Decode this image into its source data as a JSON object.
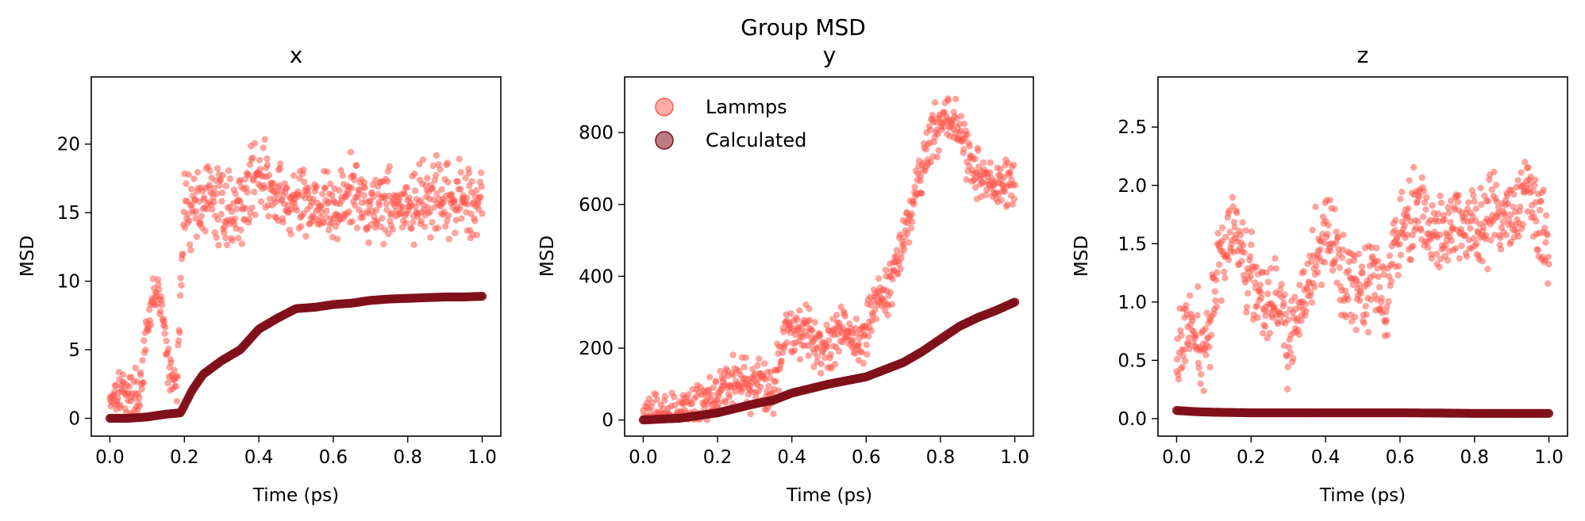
{
  "figure": {
    "suptitle": "Group MSD"
  },
  "colors": {
    "lammps": "#ff5a4e",
    "calculated": "#80101a"
  },
  "legend": {
    "placement": "upper-left of panel y",
    "entries": [
      "Lammps",
      "Calculated"
    ]
  },
  "chart_data": [
    {
      "type": "scatter",
      "title": "x",
      "xlabel": "Time (ps)",
      "ylabel": "MSD",
      "xlim": [
        -0.05,
        1.05
      ],
      "ylim": [
        -1.3,
        24.9
      ],
      "xticks": [
        0.0,
        0.2,
        0.4,
        0.6,
        0.8,
        1.0
      ],
      "xtick_labels": [
        "0.0",
        "0.2",
        "0.4",
        "0.6",
        "0.8",
        "1.0"
      ],
      "yticks": [
        0,
        5,
        10,
        15,
        20
      ],
      "ytick_labels": [
        "0",
        "5",
        "10",
        "15",
        "20"
      ],
      "series": [
        {
          "name": "Lammps",
          "x": [
            0.0,
            0.02,
            0.04,
            0.06,
            0.08,
            0.1,
            0.12,
            0.14,
            0.16,
            0.18,
            0.2,
            0.22,
            0.26,
            0.3,
            0.34,
            0.38,
            0.4,
            0.44,
            0.5,
            0.55,
            0.6,
            0.65,
            0.7,
            0.75,
            0.8,
            0.85,
            0.9,
            0.95,
            1.0
          ],
          "y": [
            1.5,
            2.2,
            2.0,
            1.5,
            2.0,
            6.0,
            9.5,
            8.0,
            3.0,
            2.5,
            15.5,
            15.5,
            16.0,
            15.5,
            15.0,
            17.0,
            18.5,
            16.0,
            15.5,
            16.0,
            15.0,
            16.5,
            15.5,
            16.0,
            15.0,
            16.0,
            15.5,
            16.0,
            16.0
          ]
        },
        {
          "name": "Calculated",
          "x": [
            0.0,
            0.05,
            0.1,
            0.15,
            0.19,
            0.22,
            0.25,
            0.3,
            0.35,
            0.4,
            0.45,
            0.5,
            0.55,
            0.6,
            0.65,
            0.7,
            0.75,
            0.8,
            0.85,
            0.9,
            0.95,
            1.0
          ],
          "y": [
            0.0,
            0.0,
            0.1,
            0.3,
            0.4,
            2.0,
            3.2,
            4.2,
            5.0,
            6.5,
            7.3,
            8.0,
            8.1,
            8.3,
            8.4,
            8.6,
            8.7,
            8.75,
            8.8,
            8.85,
            8.85,
            8.9
          ]
        }
      ]
    },
    {
      "type": "scatter",
      "title": "y",
      "xlabel": "Time (ps)",
      "ylabel": "MSD",
      "xlim": [
        -0.05,
        1.05
      ],
      "ylim": [
        -45,
        955
      ],
      "xticks": [
        0.0,
        0.2,
        0.4,
        0.6,
        0.8,
        1.0
      ],
      "xtick_labels": [
        "0.0",
        "0.2",
        "0.4",
        "0.6",
        "0.8",
        "1.0"
      ],
      "yticks": [
        0,
        200,
        400,
        600,
        800
      ],
      "ytick_labels": [
        "0",
        "200",
        "400",
        "600",
        "800"
      ],
      "series": [
        {
          "name": "Lammps",
          "x": [
            0.0,
            0.05,
            0.1,
            0.15,
            0.2,
            0.25,
            0.3,
            0.35,
            0.38,
            0.42,
            0.46,
            0.5,
            0.54,
            0.58,
            0.62,
            0.66,
            0.7,
            0.74,
            0.78,
            0.82,
            0.86,
            0.9,
            0.94,
            1.0
          ],
          "y": [
            0,
            5,
            20,
            30,
            90,
            110,
            100,
            80,
            250,
            260,
            230,
            200,
            260,
            200,
            330,
            360,
            500,
            650,
            800,
            850,
            780,
            680,
            650,
            650
          ]
        },
        {
          "name": "Calculated",
          "x": [
            0.0,
            0.1,
            0.2,
            0.3,
            0.35,
            0.4,
            0.5,
            0.55,
            0.6,
            0.7,
            0.75,
            0.8,
            0.85,
            0.9,
            0.95,
            1.0
          ],
          "y": [
            0,
            5,
            20,
            45,
            55,
            75,
            100,
            110,
            120,
            160,
            190,
            225,
            260,
            285,
            305,
            328
          ]
        }
      ]
    },
    {
      "type": "scatter",
      "title": "z",
      "xlabel": "Time (ps)",
      "ylabel": "MSD",
      "xlim": [
        -0.05,
        1.05
      ],
      "ylim": [
        -0.15,
        2.93
      ],
      "xticks": [
        0.0,
        0.2,
        0.4,
        0.6,
        0.8,
        1.0
      ],
      "xtick_labels": [
        "0.0",
        "0.2",
        "0.4",
        "0.6",
        "0.8",
        "1.0"
      ],
      "yticks": [
        0.0,
        0.5,
        1.0,
        1.5,
        2.0,
        2.5
      ],
      "ytick_labels": [
        "0.0",
        "0.5",
        "1.0",
        "1.5",
        "2.0",
        "2.5"
      ],
      "series": [
        {
          "name": "Lammps",
          "x": [
            0.0,
            0.03,
            0.06,
            0.09,
            0.12,
            0.15,
            0.18,
            0.21,
            0.24,
            0.27,
            0.3,
            0.33,
            0.36,
            0.4,
            0.44,
            0.48,
            0.52,
            0.56,
            0.6,
            0.65,
            0.7,
            0.75,
            0.8,
            0.85,
            0.9,
            0.95,
            1.0
          ],
          "y": [
            0.5,
            0.8,
            0.6,
            0.7,
            1.5,
            1.6,
            1.4,
            1.2,
            1.0,
            1.1,
            0.6,
            0.9,
            1.2,
            1.6,
            1.3,
            1.1,
            1.2,
            1.1,
            1.7,
            1.8,
            1.5,
            1.7,
            1.6,
            1.7,
            1.8,
            1.9,
            1.5
          ]
        },
        {
          "name": "Calculated",
          "x": [
            0.0,
            0.05,
            0.1,
            0.2,
            0.3,
            0.4,
            0.5,
            0.6,
            0.7,
            0.8,
            0.9,
            1.0
          ],
          "y": [
            0.07,
            0.06,
            0.055,
            0.05,
            0.05,
            0.05,
            0.05,
            0.05,
            0.048,
            0.045,
            0.045,
            0.045
          ]
        }
      ]
    }
  ]
}
